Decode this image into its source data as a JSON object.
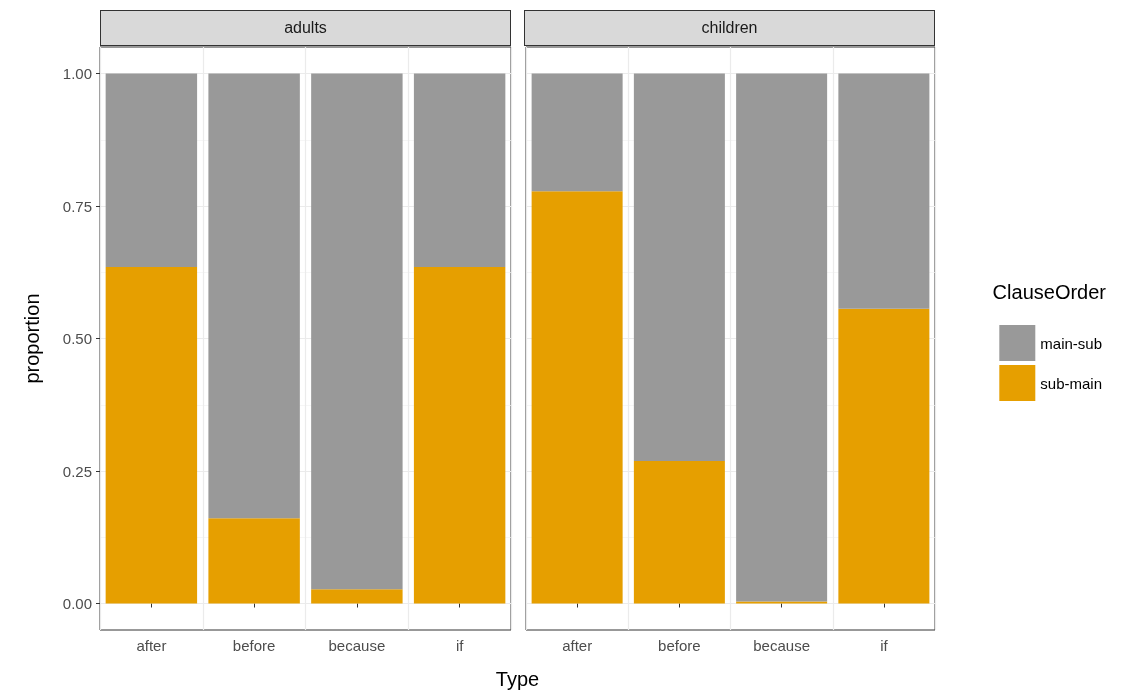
{
  "chart_data": [
    {
      "type": "bar",
      "title": "adults",
      "xlabel": "Type",
      "ylabel": "proportion",
      "categories": [
        "after",
        "before",
        "because",
        "if"
      ],
      "stacked": true,
      "series": [
        {
          "color": "#e69f00",
          "values": [
            0.635,
            0.161,
            0.027,
            0.635
          ]
        },
        {
          "color": "#999999",
          "values": [
            0.365,
            0.839,
            0.973,
            0.365
          ]
        }
      ],
      "ylim": [
        -0.05,
        1.05
      ],
      "yticks": [
        {
          "value": 0,
          "label": "0.00"
        },
        {
          "value": 0.25,
          "label": "0.25"
        },
        {
          "value": 0.5,
          "label": "0.50"
        },
        {
          "value": 0.75,
          "label": "0.75"
        },
        {
          "value": 1,
          "label": "1.00"
        }
      ],
      "grid": true,
      "legend": false
    },
    {
      "type": "bar",
      "title": "children",
      "legend_title": "ClauseOrder",
      "categories": [
        "after",
        "before",
        "because",
        "if"
      ],
      "stacked": true,
      "series": [
        {
          "name": "sub-main",
          "color": "#e69f00",
          "values": [
            0.778,
            0.269,
            0.004,
            0.556
          ]
        },
        {
          "name": "main-sub",
          "color": "#999999",
          "values": [
            0.222,
            0.731,
            0.996,
            0.444
          ]
        }
      ],
      "ylim": [
        -0.05,
        1.05
      ],
      "yticks": [
        {
          "value": 0,
          "label": null
        },
        {
          "value": 0.25,
          "label": null
        },
        {
          "value": 0.5,
          "label": null
        },
        {
          "value": 0.75,
          "label": null
        },
        {
          "value": 1,
          "label": null
        }
      ],
      "grid": true,
      "legend": "right",
      "tick_labels": "x"
    }
  ]
}
